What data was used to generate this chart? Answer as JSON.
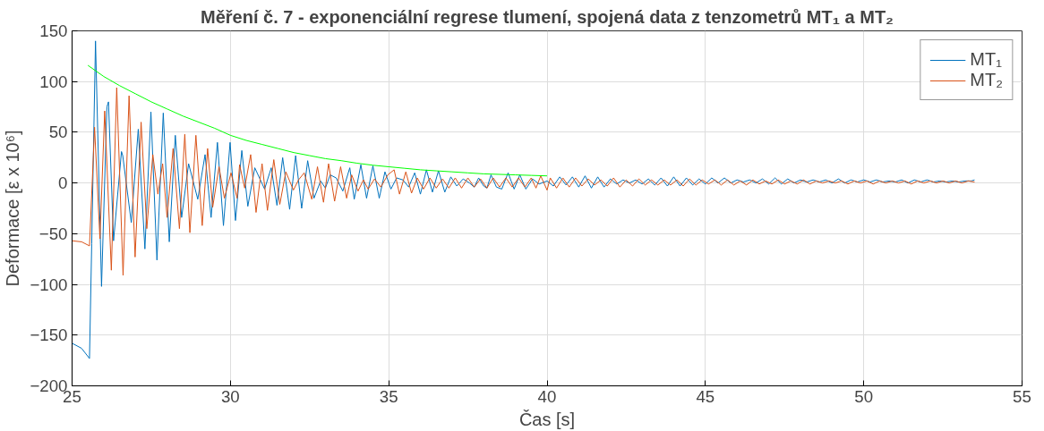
{
  "chart_data": {
    "type": "line",
    "title": "Měření č. 7 - exponenciální regrese tlumení, spojená data z tenzometrů MT₁ a MT₂",
    "xlabel": "Čas [s]",
    "ylabel": "Deformace [ε x 10⁶]",
    "xlim": [
      25,
      55
    ],
    "ylim": [
      -200,
      150
    ],
    "xticks": [
      25,
      30,
      35,
      40,
      45,
      50,
      55
    ],
    "yticks": [
      -200,
      -150,
      -100,
      -50,
      0,
      50,
      100,
      150
    ],
    "grid": true,
    "legend": "top right",
    "line_style": "solid",
    "marker": "none",
    "series": [
      {
        "name": "MT₁",
        "color": "#0072bd",
        "x": [
          25.0,
          25.3,
          25.55,
          25.62,
          25.74,
          25.93,
          26.1,
          26.15,
          26.31,
          26.56,
          26.6,
          26.87,
          27.09,
          27.3,
          27.49,
          27.68,
          27.88,
          28.07,
          28.26,
          28.46,
          28.68,
          28.97,
          29.2,
          29.39,
          29.59,
          29.78,
          29.99,
          30.16,
          30.36,
          30.55,
          30.77,
          31.08,
          31.29,
          31.47,
          31.65,
          31.87,
          32.06,
          32.25,
          32.44,
          32.64,
          32.85,
          33.0,
          33.15,
          33.34,
          33.55,
          33.77,
          33.91,
          34.12,
          34.3,
          34.5,
          34.7,
          34.88,
          35.07,
          35.25,
          35.45,
          35.63,
          35.82,
          36.0,
          36.19,
          36.38,
          36.57,
          36.77,
          36.96,
          37.15,
          37.35,
          37.55,
          37.7,
          37.84,
          38.0,
          38.1,
          38.23,
          38.4,
          38.57,
          38.77,
          38.96,
          39.14,
          39.33,
          39.54,
          39.75,
          40.0,
          40.2,
          40.4,
          40.6,
          40.8,
          41.0,
          41.2,
          41.4,
          41.6,
          41.8,
          42.0,
          42.2,
          42.4,
          42.6,
          42.8,
          43.0,
          43.2,
          43.4,
          43.6,
          43.8,
          44.0,
          44.2,
          44.4,
          44.6,
          44.8,
          45.0,
          45.2,
          45.4,
          45.6,
          45.8,
          46.0,
          46.2,
          46.4,
          46.6,
          46.8,
          47.0,
          47.2,
          47.4,
          47.6,
          47.8,
          48.0,
          48.2,
          48.4,
          48.6,
          48.8,
          49.0,
          49.2,
          49.4,
          49.6,
          49.8,
          50.0,
          50.2,
          50.4,
          50.6,
          50.8,
          51.0,
          51.2,
          51.4,
          51.6,
          51.8,
          52.0,
          52.2,
          52.4,
          52.6,
          52.8,
          53.0,
          53.2,
          53.4,
          53.5
        ],
        "values": [
          -158,
          -163,
          -173,
          -60,
          140,
          -102,
          75,
          80,
          -57,
          31,
          27,
          -39,
          53,
          -65,
          70,
          -76,
          69,
          -58,
          47,
          -34,
          19,
          -16,
          28,
          -34,
          40,
          -42,
          40,
          -37,
          32,
          -23,
          15,
          -6,
          15,
          -22,
          25,
          -26,
          27,
          -25,
          22,
          -15,
          2,
          -5,
          8,
          5,
          -8,
          15,
          -16,
          18,
          -15,
          17,
          -15,
          11,
          -6,
          5,
          3,
          -4,
          10,
          -11,
          13,
          -9,
          12,
          -9,
          6,
          -3,
          4,
          0,
          -4,
          5,
          -3,
          -5,
          8,
          -4,
          -6,
          10,
          -6,
          8,
          -6,
          4,
          -1,
          2,
          -3,
          6,
          -2,
          6,
          -4,
          7,
          -5,
          6,
          -4,
          4,
          -1,
          3,
          0,
          3,
          -1,
          4,
          -2,
          5,
          -3,
          6,
          -3,
          5,
          -2,
          4,
          -1,
          5,
          0,
          5,
          0,
          3,
          1,
          3,
          0,
          4,
          -1,
          5,
          -1,
          4,
          0,
          3,
          1,
          3,
          1,
          3,
          0,
          4,
          0,
          3,
          1,
          3,
          1,
          3,
          1,
          2,
          1,
          3,
          0,
          3,
          1,
          3,
          1,
          2,
          1,
          2,
          1,
          2,
          2,
          3
        ]
      },
      {
        "name": "MT₂",
        "color": "#d95319",
        "x": [
          25.0,
          25.3,
          25.55,
          25.71,
          25.88,
          26.03,
          26.24,
          26.41,
          26.61,
          26.8,
          26.99,
          27.18,
          27.36,
          27.55,
          27.71,
          27.86,
          28.0,
          28.19,
          28.39,
          28.56,
          28.72,
          28.91,
          29.11,
          29.28,
          29.44,
          29.64,
          29.81,
          30.02,
          30.21,
          30.29,
          30.45,
          30.64,
          30.81,
          31.0,
          31.17,
          31.37,
          31.56,
          31.75,
          31.99,
          32.15,
          32.33,
          32.57,
          32.75,
          32.94,
          33.1,
          33.29,
          33.48,
          33.67,
          33.83,
          34.03,
          34.2,
          34.35,
          34.55,
          34.75,
          34.97,
          35.17,
          35.34,
          35.54,
          35.72,
          35.9,
          36.1,
          36.3,
          36.5,
          36.7,
          36.9,
          37.1,
          37.3,
          37.5,
          37.7,
          37.9,
          38.1,
          38.3,
          38.5,
          38.7,
          38.9,
          39.1,
          39.3,
          39.5,
          39.65,
          39.8,
          40.0,
          40.1,
          40.3,
          40.5,
          40.7,
          40.9,
          41.1,
          41.3,
          41.5,
          41.7,
          41.9,
          42.1,
          42.3,
          42.5,
          42.7,
          42.9,
          43.1,
          43.3,
          43.5,
          43.7,
          43.9,
          44.1,
          44.3,
          44.5,
          44.7,
          44.9,
          45.1,
          45.3,
          45.5,
          45.7,
          45.9,
          46.1,
          46.3,
          46.5,
          46.7,
          46.9,
          47.1,
          47.3,
          47.5,
          47.7,
          47.9,
          48.1,
          48.3,
          48.5,
          48.7,
          48.9,
          49.1,
          49.3,
          49.5,
          49.7,
          49.9,
          50.1,
          50.3,
          50.5,
          50.7,
          50.9,
          51.1,
          51.3,
          51.5,
          51.7,
          51.9,
          52.1,
          52.3,
          52.5,
          52.7,
          52.9,
          53.1,
          53.3,
          53.5
        ],
        "values": [
          -57,
          -58,
          -62,
          55,
          -55,
          71,
          -86,
          94,
          -91,
          86,
          -73,
          60,
          -45,
          28,
          -11,
          19,
          -34,
          34,
          -45,
          48,
          -49,
          47,
          -42,
          34,
          -24,
          16,
          -15,
          10,
          -15,
          18,
          -5,
          28,
          -29,
          19,
          -27,
          23,
          -21,
          11,
          -7,
          3,
          10,
          -16,
          16,
          -19,
          19,
          -18,
          16,
          -15,
          8,
          -8,
          3,
          -6,
          4,
          -4,
          8,
          13,
          -11,
          11,
          -10,
          5,
          -6,
          5,
          -5,
          4,
          -5,
          5,
          -5,
          5,
          -4,
          4,
          -5,
          5,
          -4,
          5,
          -4,
          5,
          -4,
          5,
          -5,
          7,
          -7,
          5,
          -5,
          5,
          -4,
          5,
          -3,
          4,
          -2,
          3,
          -3,
          5,
          -4,
          3,
          -3,
          4,
          -2,
          3,
          -2,
          3,
          -2,
          3,
          -3,
          4,
          -2,
          3,
          -1,
          3,
          -2,
          3,
          -2,
          2,
          -2,
          3,
          -1,
          2,
          -1,
          3,
          -1,
          2,
          -1,
          3,
          -1,
          2,
          0,
          2,
          0,
          2,
          -1,
          2,
          0,
          2,
          -1,
          2,
          0,
          2,
          0,
          2,
          -1,
          2,
          0,
          2,
          0,
          2,
          0,
          2,
          0,
          2,
          1
        ]
      },
      {
        "color": "#00ff00",
        "x": [
          25.5,
          26.0,
          26.5,
          27.0,
          27.5,
          28.0,
          28.5,
          29.0,
          29.5,
          30.0,
          30.5,
          31.0,
          31.5,
          32.0,
          32.5,
          33.0,
          33.5,
          34.0,
          34.5,
          35.0,
          35.5,
          36.0,
          36.5,
          37.0,
          37.5,
          38.0,
          38.5,
          39.0,
          39.5,
          40.0
        ],
        "values": [
          116,
          105,
          96,
          88,
          80,
          73,
          66,
          60,
          54,
          47,
          42,
          38,
          34,
          30,
          27,
          24,
          22,
          19.5,
          17.5,
          16,
          14.5,
          13,
          12,
          11,
          10,
          9,
          8.5,
          8,
          7.5,
          7
        ]
      }
    ]
  }
}
